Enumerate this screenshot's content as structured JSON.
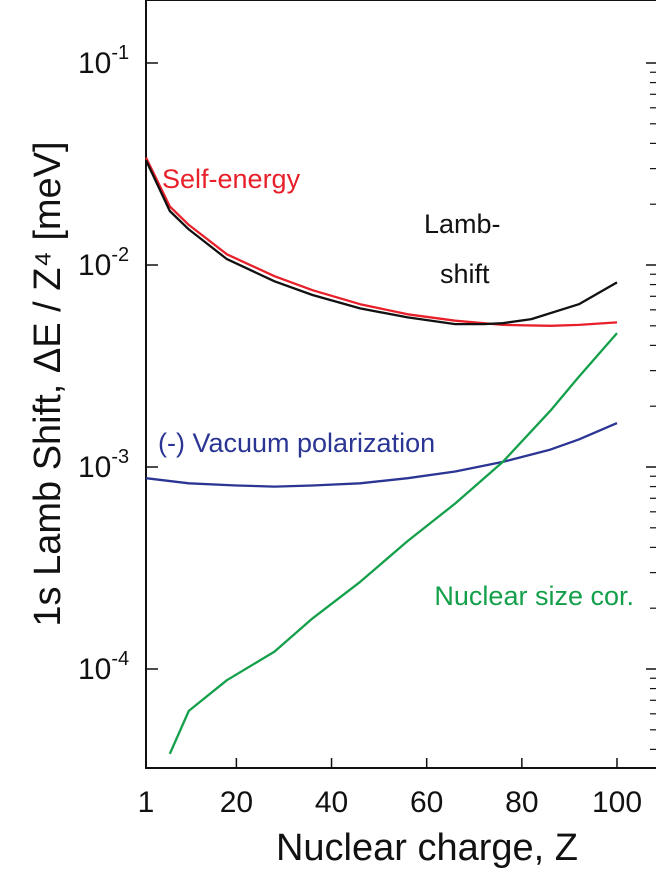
{
  "chart_data": {
    "type": "line",
    "title": "",
    "xlabel": "Nuclear charge, Z",
    "ylabel": "1s Lamb Shift, ΔE / Z⁴ [meV]",
    "xlim": [
      1,
      100
    ],
    "ylim": [
      3e-05,
      0.1
    ],
    "yscale": "log",
    "xticks": [
      {
        "value": 1,
        "label": "1"
      },
      {
        "value": 20,
        "label": "20"
      },
      {
        "value": 40,
        "label": "40"
      },
      {
        "value": 60,
        "label": "60"
      },
      {
        "value": 80,
        "label": "80"
      },
      {
        "value": 100,
        "label": "100"
      }
    ],
    "yticks": [
      {
        "value": 0.1,
        "base": "10",
        "exp": "-1"
      },
      {
        "value": 0.01,
        "base": "10",
        "exp": "-2"
      },
      {
        "value": 0.001,
        "base": "10",
        "exp": "-3"
      },
      {
        "value": 0.0001,
        "base": "10",
        "exp": "-4"
      }
    ],
    "grid": false,
    "series": [
      {
        "key": "self-energy",
        "color": "#e8202a",
        "x": [
          1,
          6,
          10,
          18,
          28,
          36,
          46,
          56,
          66,
          76,
          86,
          92,
          100
        ],
        "y": [
          0.034,
          0.0195,
          0.0158,
          0.0113,
          0.0088,
          0.0075,
          0.0064,
          0.0057,
          0.0053,
          0.00505,
          0.005,
          0.00505,
          0.0052
        ]
      },
      {
        "key": "lamb-shift",
        "color": "#111111",
        "x": [
          1,
          6,
          10,
          18,
          28,
          36,
          46,
          56,
          66,
          72,
          76,
          82,
          92,
          100
        ],
        "y": [
          0.033,
          0.0185,
          0.015,
          0.0107,
          0.0083,
          0.0071,
          0.0061,
          0.0055,
          0.0051,
          0.0051,
          0.00515,
          0.0054,
          0.0064,
          0.0082
        ]
      },
      {
        "key": "vacuum-polarization",
        "color": "#2b3694",
        "x": [
          1,
          10,
          20,
          28,
          36,
          46,
          56,
          66,
          76,
          86,
          92,
          100
        ],
        "y": [
          0.00088,
          0.00083,
          0.00081,
          0.0008,
          0.00081,
          0.00083,
          0.00088,
          0.00095,
          0.00106,
          0.00122,
          0.00137,
          0.00165
        ]
      },
      {
        "key": "nuclear-size",
        "color": "#14a04a",
        "x": [
          6,
          10,
          18,
          28,
          36,
          46,
          56,
          66,
          76,
          86,
          92,
          100
        ],
        "y": [
          3.8e-05,
          6.2e-05,
          8.8e-05,
          0.000122,
          0.000178,
          0.00027,
          0.00043,
          0.00066,
          0.00106,
          0.0019,
          0.0028,
          0.0046
        ]
      }
    ],
    "annotations": [
      {
        "key": "self-energy",
        "text": "Self-energy",
        "color": "#e8202a"
      },
      {
        "key": "lamb-line1",
        "text": "Lamb-",
        "color": "#111111"
      },
      {
        "key": "lamb-line2",
        "text": "shift",
        "color": "#111111"
      },
      {
        "key": "vacuum-polarization",
        "text": "(-) Vacuum polarization",
        "color": "#2b3694"
      },
      {
        "key": "nuclear-size",
        "text": "Nuclear size cor.",
        "color": "#14a04a"
      }
    ]
  }
}
